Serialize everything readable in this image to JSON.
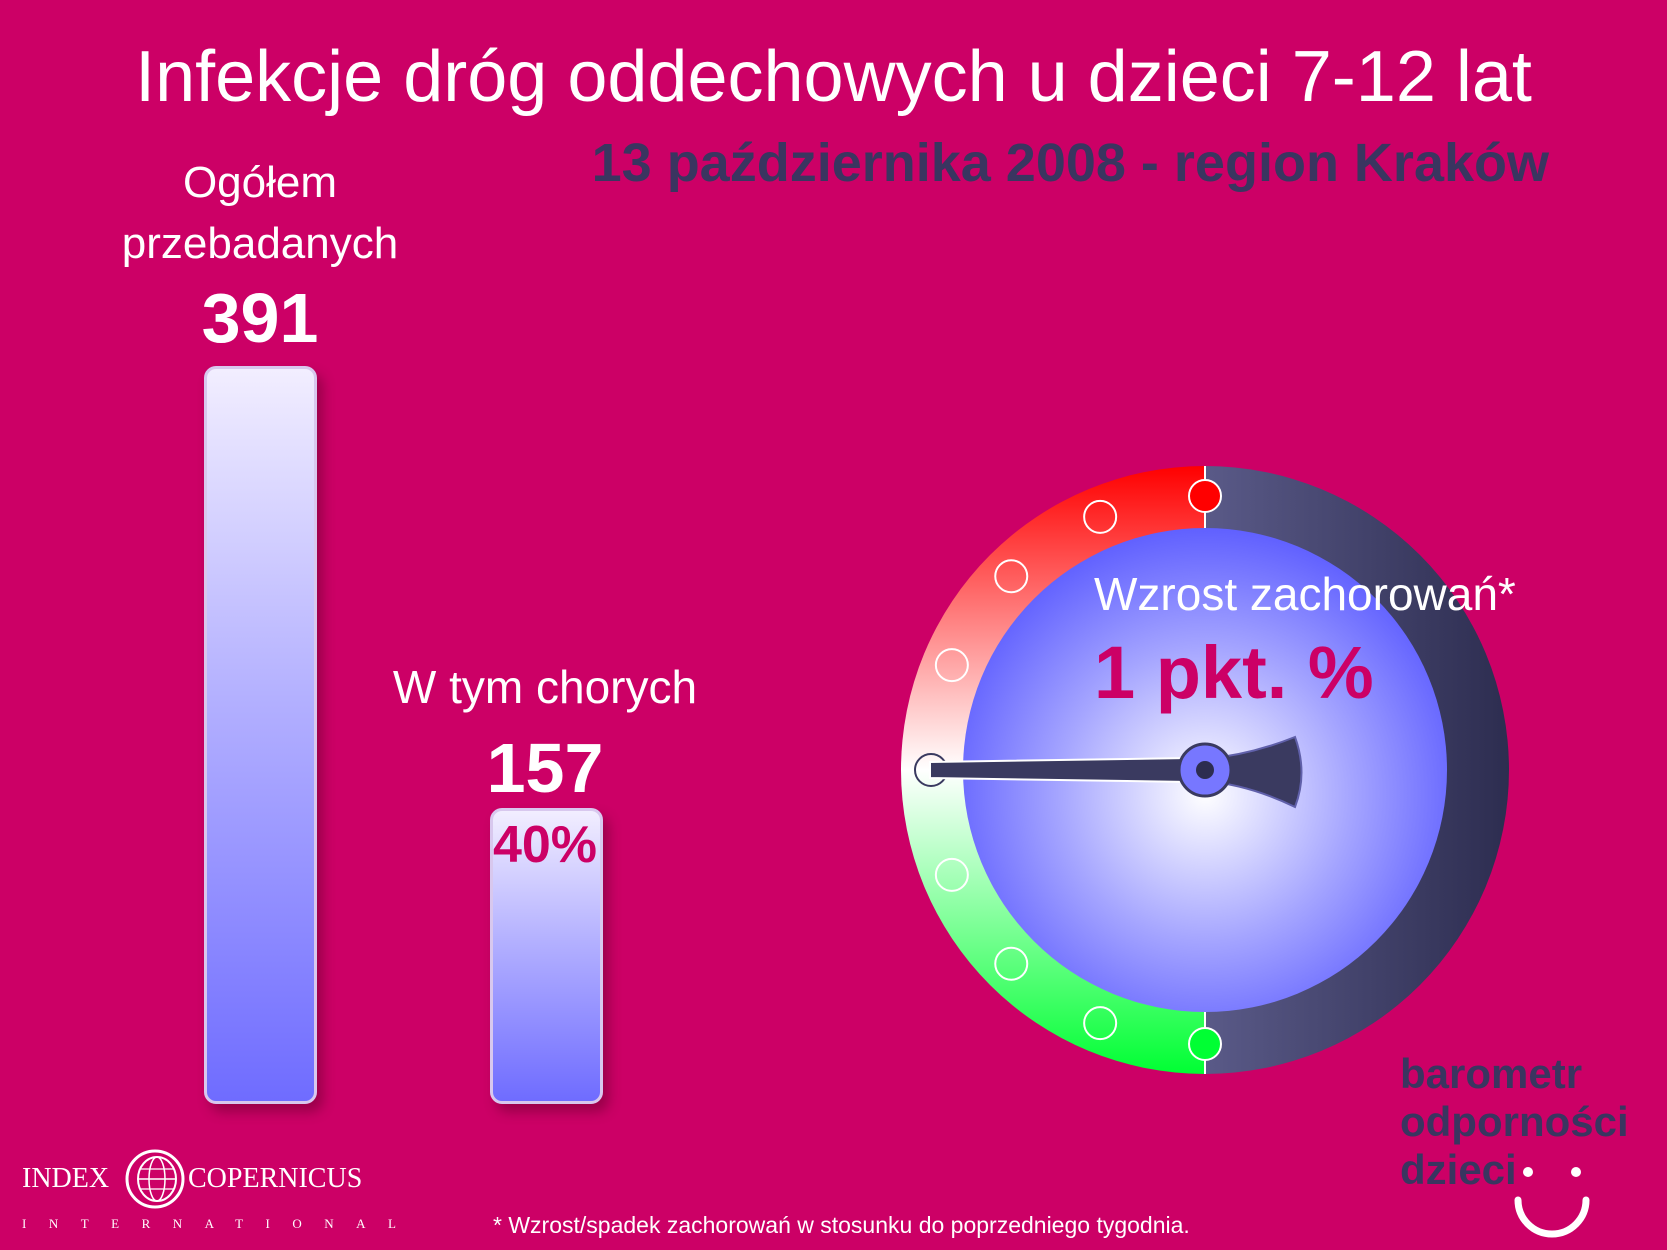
{
  "title": "Infekcje dróg oddechowych u dzieci 7-12 lat",
  "subtitle": "13 października 2008 - region Kraków",
  "chart_data": {
    "type": "bar",
    "categories": [
      "Ogółem przebadanych",
      "W tym chorych"
    ],
    "values": [
      391,
      157
    ],
    "ylim": [
      0,
      391
    ],
    "total": {
      "label": "Ogółem przebadanych",
      "value": "391"
    },
    "sick": {
      "label": "W tym chorych",
      "value": "157",
      "percent": "40%"
    }
  },
  "gauge": {
    "label": "Wzrost zachorowań*",
    "value": "1 pkt. %",
    "reading": 1,
    "colors": {
      "top": "#ff0000",
      "bottom": "#00ff33",
      "dial": "#6666ff",
      "rim": "#3a3a60"
    }
  },
  "footnote": "* Wzrost/spadek zachorowań w stosunku do poprzedniego tygodnia.",
  "logo_left": {
    "word1": "INDEX",
    "word2": "COPERNICUS",
    "sub": "INTERNATIONAL",
    "icon": "globe-icon"
  },
  "logo_right": {
    "line1": "barometr",
    "line2": "odporności",
    "line3": "dzieci",
    "icon": "smiley-icon"
  }
}
